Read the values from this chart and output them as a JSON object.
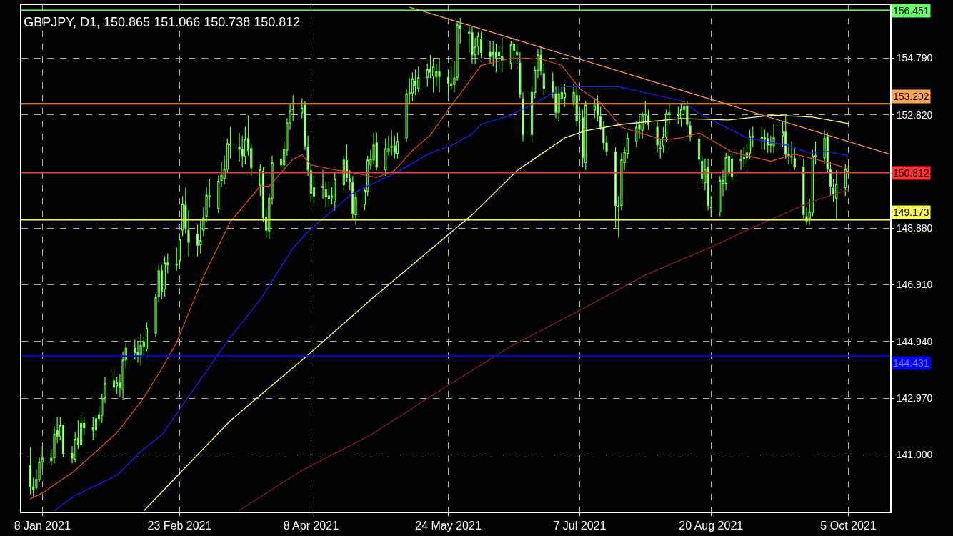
{
  "chart_data": {
    "type": "candlestick",
    "title": "GBPJPY, D1, 150.865 151.066 150.738 150.812",
    "color": "#66ff33",
    "x": [
      "2021-01-04",
      "2021-01-05",
      "2021-01-06",
      "2021-01-07",
      "2021-01-08",
      "2021-01-11",
      "2021-01-12",
      "2021-01-13",
      "2021-01-14",
      "2021-01-15",
      "2021-01-18",
      "2021-01-19",
      "2021-01-20",
      "2021-01-21",
      "2021-01-22",
      "2021-01-25",
      "2021-01-26",
      "2021-01-27",
      "2021-01-28",
      "2021-01-29",
      "2021-02-01",
      "2021-02-02",
      "2021-02-03",
      "2021-02-04",
      "2021-02-05",
      "2021-02-08",
      "2021-02-09",
      "2021-02-10",
      "2021-02-11",
      "2021-02-12",
      "2021-02-15",
      "2021-02-16",
      "2021-02-17",
      "2021-02-18",
      "2021-02-19",
      "2021-02-22",
      "2021-02-23",
      "2021-02-24",
      "2021-02-25",
      "2021-02-26",
      "2021-03-01",
      "2021-03-02",
      "2021-03-03",
      "2021-03-04",
      "2021-03-05",
      "2021-03-08",
      "2021-03-09",
      "2021-03-10",
      "2021-03-11",
      "2021-03-12",
      "2021-03-15",
      "2021-03-16",
      "2021-03-17",
      "2021-03-18",
      "2021-03-19",
      "2021-03-22",
      "2021-03-23",
      "2021-03-24",
      "2021-03-25",
      "2021-03-26",
      "2021-03-29",
      "2021-03-30",
      "2021-03-31",
      "2021-04-01",
      "2021-04-02",
      "2021-04-05",
      "2021-04-06",
      "2021-04-07",
      "2021-04-08",
      "2021-04-09",
      "2021-04-12",
      "2021-04-13",
      "2021-04-14",
      "2021-04-15",
      "2021-04-16",
      "2021-04-19",
      "2021-04-20",
      "2021-04-21",
      "2021-04-22",
      "2021-04-23",
      "2021-04-26",
      "2021-04-27",
      "2021-04-28",
      "2021-04-29",
      "2021-04-30",
      "2021-05-03",
      "2021-05-04",
      "2021-05-05",
      "2021-05-06",
      "2021-05-07",
      "2021-05-10",
      "2021-05-11",
      "2021-05-12",
      "2021-05-13",
      "2021-05-14",
      "2021-05-17",
      "2021-05-18",
      "2021-05-19",
      "2021-05-20",
      "2021-05-21",
      "2021-05-24",
      "2021-05-25",
      "2021-05-26",
      "2021-05-27",
      "2021-05-28",
      "2021-05-31",
      "2021-06-01",
      "2021-06-02",
      "2021-06-03",
      "2021-06-04",
      "2021-06-07",
      "2021-06-08",
      "2021-06-09",
      "2021-06-10",
      "2021-06-11",
      "2021-06-14",
      "2021-06-15",
      "2021-06-16",
      "2021-06-17",
      "2021-06-18",
      "2021-06-21",
      "2021-06-22",
      "2021-06-23",
      "2021-06-24",
      "2021-06-25",
      "2021-06-28",
      "2021-06-29",
      "2021-06-30",
      "2021-07-01",
      "2021-07-02",
      "2021-07-05",
      "2021-07-06",
      "2021-07-07",
      "2021-07-08",
      "2021-07-09",
      "2021-07-12",
      "2021-07-13",
      "2021-07-14",
      "2021-07-15",
      "2021-07-16",
      "2021-07-19",
      "2021-07-20",
      "2021-07-21",
      "2021-07-22",
      "2021-07-23",
      "2021-07-26",
      "2021-07-27",
      "2021-07-28",
      "2021-07-29",
      "2021-07-30",
      "2021-08-02",
      "2021-08-03",
      "2021-08-04",
      "2021-08-05",
      "2021-08-06",
      "2021-08-09",
      "2021-08-10",
      "2021-08-11",
      "2021-08-12",
      "2021-08-13",
      "2021-08-16",
      "2021-08-17",
      "2021-08-18",
      "2021-08-19",
      "2021-08-20",
      "2021-08-23",
      "2021-08-24",
      "2021-08-25",
      "2021-08-26",
      "2021-08-27",
      "2021-08-30",
      "2021-08-31",
      "2021-09-01",
      "2021-09-02",
      "2021-09-03",
      "2021-09-06",
      "2021-09-07",
      "2021-09-08",
      "2021-09-09",
      "2021-09-10",
      "2021-09-13",
      "2021-09-14",
      "2021-09-15",
      "2021-09-16",
      "2021-09-17",
      "2021-09-20",
      "2021-09-21",
      "2021-09-22",
      "2021-09-23",
      "2021-09-24",
      "2021-09-27",
      "2021-09-28",
      "2021-09-29",
      "2021-09-30",
      "2021-10-01",
      "2021-10-04",
      "2021-10-05"
    ],
    "ohlc": [
      [
        140.63,
        141.27,
        139.62,
        139.89
      ],
      [
        139.89,
        140.2,
        139.55,
        139.79
      ],
      [
        139.86,
        140.5,
        139.8,
        140.14
      ],
      [
        140.14,
        140.9,
        140.05,
        140.75
      ],
      [
        140.75,
        141.3,
        140.5,
        140.88
      ],
      [
        140.88,
        141.2,
        140.62,
        140.8
      ],
      [
        140.9,
        142.0,
        140.7,
        141.72
      ],
      [
        141.84,
        142.3,
        141.4,
        141.64
      ],
      [
        141.64,
        142.3,
        141.5,
        142.01
      ],
      [
        142.01,
        142.05,
        140.9,
        141.05
      ],
      [
        141.05,
        141.3,
        140.7,
        140.88
      ],
      [
        140.85,
        141.8,
        140.75,
        141.54
      ],
      [
        141.57,
        142.2,
        141.2,
        141.35
      ],
      [
        141.35,
        142.4,
        141.3,
        142.09
      ],
      [
        142.09,
        142.3,
        141.7,
        141.94
      ],
      [
        141.94,
        142.3,
        141.5,
        141.86
      ],
      [
        141.86,
        142.4,
        141.6,
        142.26
      ],
      [
        142.26,
        142.7,
        142.0,
        142.4
      ],
      [
        142.38,
        143.1,
        142.1,
        142.95
      ],
      [
        142.98,
        143.7,
        142.8,
        143.47
      ],
      [
        143.57,
        144.0,
        143.2,
        143.35
      ],
      [
        143.4,
        143.7,
        143.1,
        143.5
      ],
      [
        143.5,
        143.8,
        143.0,
        143.33
      ],
      [
        143.27,
        144.6,
        142.9,
        144.29
      ],
      [
        144.29,
        144.9,
        144.0,
        144.7
      ],
      [
        144.7,
        145.0,
        144.3,
        144.55
      ],
      [
        144.56,
        144.95,
        144.2,
        144.46
      ],
      [
        144.46,
        145.2,
        144.1,
        144.8
      ],
      [
        144.75,
        145.1,
        144.4,
        144.92
      ],
      [
        144.68,
        145.6,
        144.6,
        145.4
      ],
      [
        145.23,
        146.6,
        145.1,
        146.46
      ],
      [
        146.51,
        147.6,
        146.3,
        147.4
      ],
      [
        147.4,
        147.6,
        146.4,
        146.68
      ],
      [
        146.76,
        147.9,
        146.5,
        147.67
      ],
      [
        147.67,
        148.0,
        147.3,
        147.6
      ],
      [
        147.6,
        148.2,
        147.4,
        147.62
      ],
      [
        147.75,
        148.7,
        147.5,
        148.49
      ],
      [
        148.81,
        150.0,
        148.6,
        149.72
      ],
      [
        149.67,
        150.3,
        148.7,
        148.88
      ],
      [
        148.81,
        149.5,
        147.9,
        148.39
      ],
      [
        148.66,
        149.0,
        147.9,
        148.29
      ],
      [
        148.3,
        149.2,
        148.0,
        148.45
      ],
      [
        148.81,
        149.6,
        148.6,
        149.23
      ],
      [
        149.3,
        150.3,
        149.1,
        150.02
      ],
      [
        150.0,
        150.6,
        149.6,
        149.98
      ],
      [
        149.57,
        150.7,
        149.4,
        150.51
      ],
      [
        150.54,
        151.2,
        150.3,
        150.71
      ],
      [
        150.61,
        151.4,
        150.4,
        150.93
      ],
      [
        150.93,
        152.0,
        150.8,
        151.82
      ],
      [
        151.8,
        152.4,
        151.3,
        151.78
      ],
      [
        151.7,
        152.2,
        151.2,
        151.62
      ],
      [
        151.63,
        152.1,
        151.0,
        151.4
      ],
      [
        151.38,
        152.4,
        151.1,
        151.97
      ],
      [
        152.0,
        152.8,
        151.4,
        151.58
      ],
      [
        151.65,
        151.8,
        150.7,
        150.98
      ],
      [
        150.37,
        151.1,
        150.0,
        150.91
      ],
      [
        150.86,
        151.0,
        149.1,
        149.25
      ],
      [
        149.25,
        149.6,
        148.55,
        148.81
      ],
      [
        148.78,
        150.1,
        148.5,
        149.92
      ],
      [
        149.92,
        151.4,
        149.7,
        151.16
      ],
      [
        151.28,
        151.6,
        150.8,
        151.08
      ],
      [
        151.08,
        151.9,
        150.9,
        151.63
      ],
      [
        151.6,
        152.7,
        151.4,
        152.54
      ],
      [
        152.54,
        153.2,
        152.3,
        152.96
      ],
      [
        153.0,
        153.5,
        152.6,
        153.01
      ],
      [
        152.89,
        153.4,
        152.7,
        153.06
      ],
      [
        153.16,
        153.3,
        151.6,
        151.73
      ],
      [
        151.7,
        152.1,
        150.7,
        150.91
      ],
      [
        150.88,
        151.1,
        149.8,
        150.09
      ],
      [
        150.0,
        150.7,
        149.7,
        150.29
      ],
      [
        150.34,
        150.9,
        149.9,
        150.29
      ],
      [
        150.22,
        150.5,
        149.6,
        149.97
      ],
      [
        150.0,
        150.5,
        149.6,
        149.9
      ],
      [
        150.0,
        150.3,
        149.7,
        149.95
      ],
      [
        149.8,
        150.8,
        149.5,
        150.59
      ],
      [
        150.39,
        151.4,
        150.2,
        151.25
      ],
      [
        151.23,
        151.8,
        150.5,
        150.64
      ],
      [
        150.6,
        150.9,
        150.2,
        150.5
      ],
      [
        150.46,
        150.7,
        149.2,
        149.38
      ],
      [
        149.35,
        150.1,
        149.0,
        149.94
      ],
      [
        149.7,
        150.3,
        149.5,
        150.19
      ],
      [
        150.17,
        151.4,
        150.0,
        151.25
      ],
      [
        151.08,
        151.6,
        150.9,
        151.28
      ],
      [
        151.25,
        152.2,
        151.1,
        151.77
      ],
      [
        151.85,
        152.2,
        150.9,
        151.01
      ],
      [
        150.91,
        152.0,
        150.7,
        151.65
      ],
      [
        151.55,
        152.1,
        151.4,
        151.65
      ],
      [
        151.7,
        152.3,
        151.4,
        151.72
      ],
      [
        151.75,
        152.1,
        151.3,
        151.5
      ],
      [
        151.48,
        152.2,
        151.3,
        151.9
      ],
      [
        152.02,
        153.7,
        151.9,
        153.55
      ],
      [
        153.55,
        154.1,
        153.2,
        153.58
      ],
      [
        153.58,
        154.3,
        153.3,
        154.07
      ],
      [
        154.0,
        154.4,
        153.5,
        153.82
      ],
      [
        153.75,
        154.5,
        153.6,
        154.12
      ],
      [
        154.12,
        154.6,
        153.8,
        154.4
      ],
      [
        154.4,
        154.9,
        154.1,
        154.3
      ],
      [
        154.17,
        154.8,
        153.6,
        154.49
      ],
      [
        154.15,
        154.6,
        153.8,
        154.32
      ],
      [
        154.32,
        154.8,
        153.6,
        154.15
      ],
      [
        154.12,
        154.4,
        153.5,
        153.92
      ],
      [
        153.9,
        154.5,
        153.7,
        153.85
      ],
      [
        153.87,
        154.7,
        153.6,
        154.1
      ],
      [
        154.12,
        156.1,
        154.0,
        155.95
      ],
      [
        155.92,
        156.2,
        155.3,
        155.83
      ],
      [
        155.7,
        155.9,
        155.0,
        155.66
      ],
      [
        155.68,
        155.9,
        154.6,
        154.91
      ],
      [
        154.91,
        155.5,
        154.6,
        155.18
      ],
      [
        155.21,
        155.7,
        154.9,
        155.56
      ],
      [
        155.43,
        155.7,
        154.8,
        154.99
      ],
      [
        155.0,
        155.4,
        154.6,
        154.85
      ],
      [
        154.99,
        155.4,
        154.5,
        154.91
      ],
      [
        154.99,
        155.3,
        154.3,
        154.79
      ],
      [
        154.99,
        155.2,
        154.4,
        154.87
      ],
      [
        154.86,
        155.5,
        154.3,
        154.69
      ],
      [
        154.62,
        155.4,
        154.4,
        155.26
      ],
      [
        155.05,
        155.5,
        154.7,
        155.28
      ],
      [
        154.99,
        155.3,
        154.6,
        154.91
      ],
      [
        154.62,
        155.0,
        153.4,
        153.53
      ],
      [
        153.36,
        153.6,
        151.9,
        152.12
      ],
      [
        152.14,
        153.8,
        151.9,
        153.6
      ],
      [
        153.6,
        154.5,
        153.4,
        154.37
      ],
      [
        154.37,
        155.1,
        154.1,
        154.91
      ],
      [
        154.89,
        155.2,
        154.2,
        154.37
      ],
      [
        154.25,
        154.6,
        153.5,
        153.75
      ],
      [
        153.97,
        154.3,
        153.4,
        153.6
      ],
      [
        153.55,
        153.8,
        152.7,
        152.91
      ],
      [
        152.91,
        153.8,
        152.6,
        153.55
      ],
      [
        153.4,
        153.9,
        153.2,
        153.6
      ],
      [
        153.42,
        153.9,
        153.1,
        153.58
      ],
      [
        153.26,
        153.9,
        153.1,
        153.6
      ],
      [
        153.5,
        153.8,
        152.4,
        152.61
      ],
      [
        152.63,
        153.1,
        152.2,
        152.63
      ],
      [
        152.71,
        153.0,
        151.0,
        151.33
      ],
      [
        151.16,
        153.3,
        150.9,
        153.16
      ],
      [
        152.99,
        153.4,
        152.7,
        153.13
      ],
      [
        153.21,
        153.5,
        152.6,
        152.81
      ],
      [
        152.76,
        153.1,
        152.3,
        152.39
      ],
      [
        152.37,
        152.6,
        151.6,
        151.85
      ],
      [
        151.85,
        152.1,
        151.4,
        151.55
      ],
      [
        151.53,
        151.7,
        148.9,
        149.67
      ],
      [
        149.65,
        150.0,
        148.55,
        149.62
      ],
      [
        149.67,
        151.5,
        149.5,
        151.26
      ],
      [
        151.16,
        151.7,
        150.9,
        151.53
      ],
      [
        151.48,
        152.2,
        151.3,
        152.0
      ],
      [
        151.9,
        152.6,
        151.7,
        152.39
      ],
      [
        152.47,
        152.8,
        152.0,
        152.32
      ],
      [
        152.29,
        152.9,
        152.0,
        152.79
      ],
      [
        152.84,
        153.3,
        152.5,
        152.82
      ],
      [
        152.79,
        153.0,
        152.3,
        152.49
      ],
      [
        152.39,
        152.6,
        151.5,
        151.77
      ],
      [
        151.65,
        152.0,
        151.3,
        151.67
      ],
      [
        151.75,
        152.4,
        151.5,
        152.05
      ],
      [
        152.05,
        153.0,
        151.9,
        152.86
      ],
      [
        152.89,
        153.2,
        152.5,
        152.87
      ],
      [
        152.8,
        153.1,
        152.5,
        152.82
      ],
      [
        152.68,
        153.2,
        152.4,
        153.01
      ],
      [
        153.01,
        153.3,
        152.8,
        153.11
      ],
      [
        153.11,
        153.3,
        152.4,
        152.49
      ],
      [
        152.44,
        152.6,
        151.9,
        152.05
      ],
      [
        151.97,
        152.1,
        151.1,
        151.28
      ],
      [
        151.21,
        151.4,
        150.4,
        150.61
      ],
      [
        150.46,
        151.3,
        150.2,
        150.93
      ],
      [
        151.0,
        151.3,
        149.5,
        149.67
      ],
      [
        149.62,
        150.0,
        149.25,
        149.6
      ],
      [
        149.45,
        150.7,
        149.3,
        150.54
      ],
      [
        150.44,
        150.9,
        150.0,
        150.54
      ],
      [
        150.44,
        151.5,
        150.2,
        151.33
      ],
      [
        151.38,
        151.6,
        150.7,
        150.81
      ],
      [
        150.66,
        151.5,
        150.5,
        151.28
      ],
      [
        151.23,
        151.6,
        150.9,
        151.28
      ],
      [
        151.3,
        151.7,
        151.0,
        151.33
      ],
      [
        151.33,
        151.8,
        151.1,
        151.5
      ],
      [
        151.5,
        152.3,
        151.3,
        152.07
      ],
      [
        152.07,
        152.4,
        151.7,
        152.05
      ],
      [
        152.03,
        152.4,
        151.6,
        152.0
      ],
      [
        151.97,
        152.3,
        151.6,
        152.02
      ],
      [
        151.99,
        152.2,
        151.5,
        151.77
      ],
      [
        151.77,
        152.1,
        151.5,
        151.79
      ],
      [
        151.75,
        152.5,
        151.5,
        152.02
      ],
      [
        152.1,
        152.6,
        151.7,
        152.22
      ],
      [
        152.22,
        152.8,
        151.3,
        151.45
      ],
      [
        151.45,
        151.8,
        151.1,
        151.4
      ],
      [
        151.37,
        151.9,
        151.1,
        151.35
      ],
      [
        151.3,
        151.7,
        150.9,
        151.01
      ],
      [
        151.01,
        151.3,
        149.2,
        149.35
      ],
      [
        149.28,
        149.6,
        149.0,
        149.13
      ],
      [
        149.23,
        149.9,
        149.0,
        149.45
      ],
      [
        149.43,
        151.6,
        149.3,
        151.38
      ],
      [
        151.38,
        151.9,
        151.1,
        151.4
      ],
      [
        151.33,
        152.3,
        151.1,
        152.0
      ],
      [
        152.07,
        152.2,
        150.8,
        150.93
      ],
      [
        150.91,
        151.2,
        150.0,
        150.34
      ],
      [
        150.27,
        150.6,
        149.8,
        150.04
      ],
      [
        149.92,
        150.9,
        149.17,
        150.42
      ],
      [
        150.29,
        151.1,
        150.0,
        150.93
      ],
      [
        150.865,
        151.066,
        150.738,
        150.812
      ]
    ],
    "series": [
      {
        "type": "line",
        "color": "#e0402a",
        "x": [
          "2021-01-04",
          "2021-01-08",
          "2021-01-18",
          "2021-01-25",
          "2021-02-02",
          "2021-02-11",
          "2021-02-17",
          "2021-02-22",
          "2021-03-03",
          "2021-03-12",
          "2021-03-22",
          "2021-03-25",
          "2021-04-02",
          "2021-04-05",
          "2021-04-08",
          "2021-04-16",
          "2021-04-21",
          "2021-04-30",
          "2021-05-06",
          "2021-05-12",
          "2021-05-18",
          "2021-05-25",
          "2021-06-04",
          "2021-06-14",
          "2021-06-24",
          "2021-07-01",
          "2021-07-07",
          "2021-07-14",
          "2021-07-21",
          "2021-07-29",
          "2021-08-04",
          "2021-08-10",
          "2021-08-16",
          "2021-08-27",
          "2021-09-09",
          "2021-09-17",
          "2021-09-24",
          "2021-10-05"
        ],
        "values": [
          139.47,
          139.67,
          140.38,
          141.02,
          141.77,
          142.98,
          143.99,
          144.9,
          147.2,
          149.11,
          150.34,
          150.34,
          151.28,
          151.43,
          151.08,
          150.91,
          150.84,
          150.64,
          150.88,
          151.58,
          152.12,
          153.13,
          154.54,
          154.79,
          154.76,
          154.54,
          153.73,
          153.23,
          152.39,
          152.14,
          151.95,
          152.02,
          152.19,
          151.53,
          151.21,
          151.45,
          151.28,
          150.96
        ]
      },
      {
        "type": "line",
        "color": "#1a1aff",
        "x": [
          "2021-01-12",
          "2021-01-19",
          "2021-02-02",
          "2021-02-10",
          "2021-02-17",
          "2021-03-11",
          "2021-03-22",
          "2021-04-02",
          "2021-04-08",
          "2021-04-22",
          "2021-05-07",
          "2021-05-18",
          "2021-05-25",
          "2021-06-01",
          "2021-06-04",
          "2021-06-14",
          "2021-06-22",
          "2021-07-02",
          "2021-07-20",
          "2021-08-10",
          "2021-08-17",
          "2021-09-01",
          "2021-09-14",
          "2021-09-22",
          "2021-09-28",
          "2021-10-05"
        ],
        "values": [
          139.05,
          139.59,
          140.28,
          141.12,
          141.69,
          144.95,
          146.39,
          148.19,
          148.86,
          150.09,
          150.84,
          151.5,
          151.75,
          152.15,
          152.49,
          152.81,
          153.23,
          153.8,
          153.8,
          153.31,
          152.81,
          152.02,
          151.77,
          151.5,
          151.55,
          151.4
        ]
      },
      {
        "type": "line",
        "color": "#ffff66",
        "x": [
          "2021-02-11",
          "2021-02-24",
          "2021-03-12",
          "2021-04-05",
          "2021-04-28",
          "2021-06-01",
          "2021-06-16",
          "2021-07-02",
          "2021-07-09",
          "2021-07-21",
          "2021-08-10",
          "2021-08-26",
          "2021-09-10",
          "2021-09-23",
          "2021-10-05"
        ],
        "values": [
          139.05,
          140.46,
          142.19,
          144.29,
          146.39,
          149.35,
          150.88,
          152.02,
          152.27,
          152.49,
          152.69,
          152.64,
          152.81,
          152.74,
          152.52
        ]
      },
      {
        "type": "line",
        "color": "#8b1a1a",
        "x": [
          "2021-03-15",
          "2021-04-05",
          "2021-04-28",
          "2021-05-21",
          "2021-06-14",
          "2021-07-07",
          "2021-07-29",
          "2021-08-23",
          "2021-09-02",
          "2021-09-22",
          "2021-10-05"
        ],
        "values": [
          139.07,
          140.46,
          141.69,
          143.22,
          144.78,
          146.02,
          147.25,
          148.36,
          148.86,
          149.77,
          150.22
        ]
      },
      {
        "type": "line",
        "color": "#ff9933",
        "x": [
          "2021-05-11",
          "2021-10-19"
        ],
        "values": [
          156.57,
          151.45
        ]
      }
    ],
    "ref_lines": [
      {
        "axis": "y",
        "value": 156.451,
        "label": "156.451",
        "color": "#66ff66"
      },
      {
        "axis": "y",
        "value": 153.202,
        "label": "153.202",
        "color": "#ffa64d"
      },
      {
        "axis": "y",
        "value": 150.812,
        "label": "150.812",
        "color": "#ff3333"
      },
      {
        "axis": "y",
        "value": 149.173,
        "label": "149.173",
        "color": "#ffff4d"
      },
      {
        "axis": "y",
        "value": 144.431,
        "label": "144.431",
        "color": "#0000ff"
      }
    ],
    "xlim": [
      "2021-01-01",
      "2021-10-19"
    ],
    "xticks": [
      {
        "value": "2021-01-08",
        "label": "8 Jan 2021"
      },
      {
        "value": "2021-02-23",
        "label": "23 Feb 2021"
      },
      {
        "value": "2021-04-08",
        "label": "8 Apr 2021"
      },
      {
        "value": "2021-05-24",
        "label": "24 May 2021"
      },
      {
        "value": "2021-07-07",
        "label": "7 Jul 2021"
      },
      {
        "value": "2021-08-20",
        "label": "20 Aug 2021"
      },
      {
        "value": "2021-10-05",
        "label": "5 Oct 2021"
      }
    ],
    "ylim": [
      139.02,
      156.64
    ],
    "yticks": [
      {
        "value": 141.0,
        "label": "141.000"
      },
      {
        "value": 142.97,
        "label": "142.970"
      },
      {
        "value": 144.94,
        "label": "144.940"
      },
      {
        "value": 146.91,
        "label": "146.910"
      },
      {
        "value": 148.88,
        "label": "148.880"
      },
      {
        "value": 152.82,
        "label": "152.820"
      },
      {
        "value": 154.79,
        "label": "154.790"
      }
    ],
    "grid": true,
    "legend": false
  }
}
